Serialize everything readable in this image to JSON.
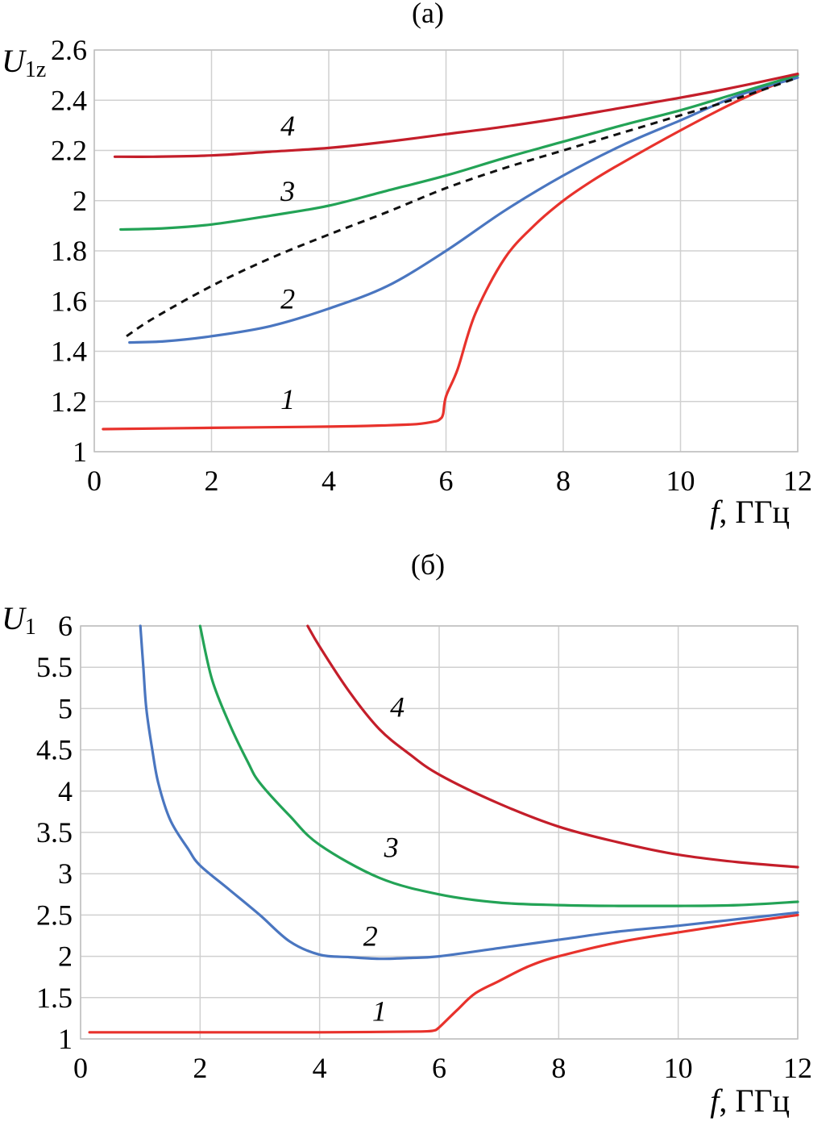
{
  "chart_data": [
    {
      "id": "a",
      "type": "line",
      "title": "(а)",
      "ylabel_main": "U",
      "ylabel_sub": "1z",
      "xlabel_var": "f",
      "xlabel_unit": ", ГГц",
      "xlim": [
        0,
        12
      ],
      "ylim": [
        1,
        2.6
      ],
      "xticks": [
        0,
        2,
        4,
        6,
        8,
        10,
        12
      ],
      "yticks": [
        1,
        1.2,
        1.4,
        1.6,
        1.8,
        2,
        2.2,
        2.4,
        2.6
      ],
      "ytick_labels": [
        "1",
        "1.2",
        "1.4",
        "1.6",
        "1.8",
        "2",
        "2.2",
        "2.4",
        "2.6"
      ],
      "grid": true,
      "series": [
        {
          "name": "1",
          "color": "#e8322c",
          "dash": false,
          "label": "1",
          "label_at": [
            3.3,
            1.17
          ],
          "x": [
            0.15,
            2,
            4,
            5,
            5.5,
            5.8,
            5.9,
            5.95,
            6.0,
            6.2,
            6.5,
            7,
            7.5,
            8,
            8.5,
            9,
            10,
            11,
            12
          ],
          "y": [
            1.09,
            1.095,
            1.1,
            1.105,
            1.11,
            1.12,
            1.13,
            1.15,
            1.22,
            1.33,
            1.55,
            1.77,
            1.9,
            2.0,
            2.08,
            2.15,
            2.28,
            2.4,
            2.5
          ]
        },
        {
          "name": "2",
          "color": "#4a76c0",
          "dash": false,
          "label": "2",
          "label_at": [
            3.3,
            1.57
          ],
          "x": [
            0.6,
            1.2,
            2,
            3,
            4,
            5,
            6,
            7,
            8,
            9,
            10,
            11,
            12
          ],
          "y": [
            1.435,
            1.44,
            1.46,
            1.5,
            1.57,
            1.66,
            1.8,
            1.96,
            2.1,
            2.22,
            2.32,
            2.42,
            2.49
          ]
        },
        {
          "name": "3",
          "color": "#23a356",
          "dash": false,
          "label": "3",
          "label_at": [
            3.3,
            2.0
          ],
          "x": [
            0.45,
            1.2,
            2,
            3,
            4,
            5,
            6,
            7,
            8,
            9,
            10,
            11,
            12
          ],
          "y": [
            1.885,
            1.89,
            1.905,
            1.94,
            1.98,
            2.04,
            2.1,
            2.17,
            2.235,
            2.3,
            2.36,
            2.43,
            2.5
          ]
        },
        {
          "name": "4",
          "color": "#c41e2a",
          "dash": false,
          "label": "4",
          "label_at": [
            3.3,
            2.26
          ],
          "x": [
            0.35,
            1,
            2,
            3,
            4,
            5,
            6,
            7,
            8,
            9,
            10,
            11,
            12
          ],
          "y": [
            2.175,
            2.175,
            2.18,
            2.195,
            2.21,
            2.235,
            2.265,
            2.295,
            2.33,
            2.37,
            2.41,
            2.455,
            2.505
          ]
        },
        {
          "name": "dashed",
          "color": "#111111",
          "dash": true,
          "label": "",
          "label_at": null,
          "x": [
            0.55,
            1,
            2,
            3,
            4,
            5,
            6,
            7,
            8,
            9,
            10,
            11,
            12
          ],
          "y": [
            1.46,
            1.53,
            1.66,
            1.77,
            1.865,
            1.955,
            2.05,
            2.13,
            2.2,
            2.27,
            2.34,
            2.41,
            2.49
          ]
        }
      ]
    },
    {
      "id": "b",
      "type": "line",
      "title": "(б)",
      "ylabel_main": "U",
      "ylabel_sub": "1",
      "xlabel_var": "f",
      "xlabel_unit": ", ГГц",
      "xlim": [
        0,
        12
      ],
      "ylim": [
        1,
        6
      ],
      "xticks": [
        0,
        2,
        4,
        6,
        8,
        10,
        12
      ],
      "yticks": [
        1,
        1.5,
        2,
        2.5,
        3,
        3.5,
        4,
        4.5,
        5,
        5.5,
        6
      ],
      "ytick_labels": [
        "1",
        "1.5",
        "2",
        "2.5",
        "3",
        "3.5",
        "4",
        "4.5",
        "5",
        "5.5",
        "6"
      ],
      "grid": true,
      "series": [
        {
          "name": "1",
          "color": "#e8322c",
          "dash": false,
          "label": "1",
          "label_at": [
            5.0,
            1.22
          ],
          "x": [
            0.15,
            2,
            4,
            5,
            5.7,
            5.9,
            6.0,
            6.3,
            6.6,
            7,
            7.5,
            8,
            9,
            10,
            11,
            12
          ],
          "y": [
            1.08,
            1.08,
            1.08,
            1.085,
            1.09,
            1.1,
            1.14,
            1.35,
            1.55,
            1.7,
            1.88,
            2.0,
            2.17,
            2.29,
            2.4,
            2.5
          ]
        },
        {
          "name": "2",
          "color": "#4a76c0",
          "dash": false,
          "label": "2",
          "label_at": [
            4.85,
            2.13
          ],
          "x": [
            1.0,
            1.05,
            1.1,
            1.2,
            1.3,
            1.5,
            1.8,
            2,
            2.5,
            3,
            3.5,
            4,
            4.5,
            5,
            5.5,
            6,
            7,
            8,
            9,
            10,
            11,
            12
          ],
          "y": [
            6.0,
            5.5,
            5.0,
            4.5,
            4.1,
            3.65,
            3.3,
            3.1,
            2.8,
            2.5,
            2.18,
            2.02,
            1.99,
            1.97,
            1.98,
            2.0,
            2.1,
            2.2,
            2.3,
            2.37,
            2.45,
            2.53
          ]
        },
        {
          "name": "3",
          "color": "#23a356",
          "dash": false,
          "label": "3",
          "label_at": [
            5.2,
            3.2
          ],
          "x": [
            2.0,
            2.2,
            2.5,
            2.8,
            3,
            3.5,
            4,
            5,
            6,
            7,
            8,
            9,
            10,
            11,
            12
          ],
          "y": [
            6.0,
            5.35,
            4.8,
            4.35,
            4.1,
            3.7,
            3.35,
            2.95,
            2.75,
            2.65,
            2.62,
            2.61,
            2.61,
            2.62,
            2.66
          ]
        },
        {
          "name": "4",
          "color": "#c41e2a",
          "dash": false,
          "label": "4",
          "label_at": [
            5.3,
            4.9
          ],
          "x": [
            3.8,
            4,
            4.5,
            5,
            5.5,
            6,
            7,
            8,
            9,
            10,
            11,
            12
          ],
          "y": [
            6.0,
            5.75,
            5.2,
            4.75,
            4.45,
            4.2,
            3.85,
            3.57,
            3.38,
            3.23,
            3.14,
            3.08
          ]
        }
      ]
    }
  ]
}
